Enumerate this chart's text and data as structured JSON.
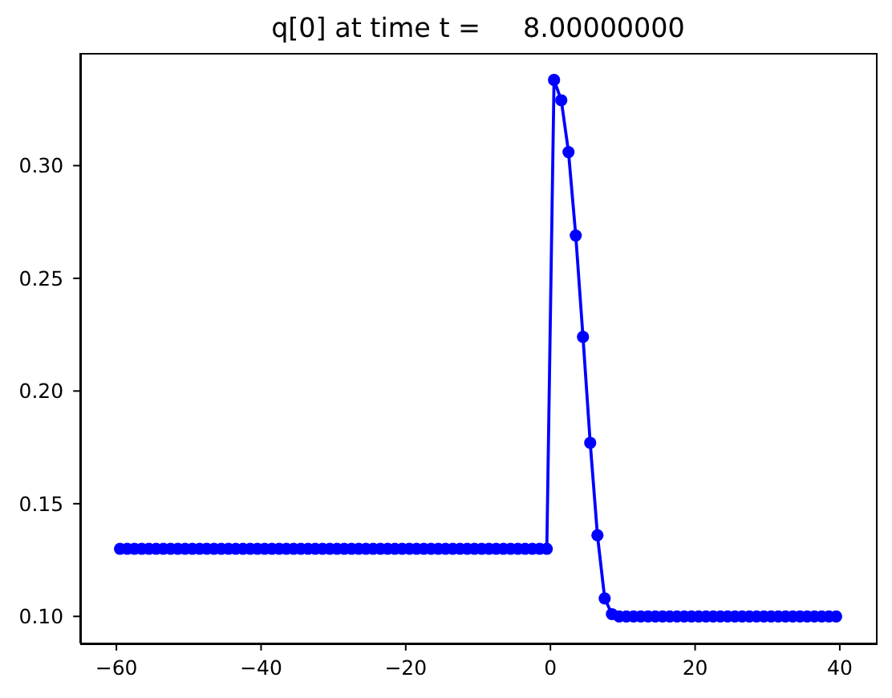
{
  "chart_data": {
    "type": "line",
    "title": "q[0] at time t =     8.00000000",
    "x": [
      -59.5,
      -58.5,
      -57.5,
      -56.5,
      -55.5,
      -54.5,
      -53.5,
      -52.5,
      -51.5,
      -50.5,
      -49.5,
      -48.5,
      -47.5,
      -46.5,
      -45.5,
      -44.5,
      -43.5,
      -42.5,
      -41.5,
      -40.5,
      -39.5,
      -38.5,
      -37.5,
      -36.5,
      -35.5,
      -34.5,
      -33.5,
      -32.5,
      -31.5,
      -30.5,
      -29.5,
      -28.5,
      -27.5,
      -26.5,
      -25.5,
      -24.5,
      -23.5,
      -22.5,
      -21.5,
      -20.5,
      -19.5,
      -18.5,
      -17.5,
      -16.5,
      -15.5,
      -14.5,
      -13.5,
      -12.5,
      -11.5,
      -10.5,
      -9.5,
      -8.5,
      -7.5,
      -6.5,
      -5.5,
      -4.5,
      -3.5,
      -2.5,
      -1.5,
      -0.5,
      0.5,
      1.5,
      2.5,
      3.5,
      4.5,
      5.5,
      6.5,
      7.5,
      8.5,
      9.5,
      10.5,
      11.5,
      12.5,
      13.5,
      14.5,
      15.5,
      16.5,
      17.5,
      18.5,
      19.5,
      20.5,
      21.5,
      22.5,
      23.5,
      24.5,
      25.5,
      26.5,
      27.5,
      28.5,
      29.5,
      30.5,
      31.5,
      32.5,
      33.5,
      34.5,
      35.5,
      36.5,
      37.5,
      38.5,
      39.5
    ],
    "series": [
      {
        "color": "#0000ff",
        "values": [
          0.13,
          0.13,
          0.13,
          0.13,
          0.13,
          0.13,
          0.13,
          0.13,
          0.13,
          0.13,
          0.13,
          0.13,
          0.13,
          0.13,
          0.13,
          0.13,
          0.13,
          0.13,
          0.13,
          0.13,
          0.13,
          0.13,
          0.13,
          0.13,
          0.13,
          0.13,
          0.13,
          0.13,
          0.13,
          0.13,
          0.13,
          0.13,
          0.13,
          0.13,
          0.13,
          0.13,
          0.13,
          0.13,
          0.13,
          0.13,
          0.13,
          0.13,
          0.13,
          0.13,
          0.13,
          0.13,
          0.13,
          0.13,
          0.13,
          0.13,
          0.13,
          0.13,
          0.13,
          0.13,
          0.13,
          0.13,
          0.13,
          0.13,
          0.13,
          0.13,
          0.338,
          0.329,
          0.306,
          0.269,
          0.224,
          0.177,
          0.136,
          0.108,
          0.101,
          0.1,
          0.1,
          0.1,
          0.1,
          0.1,
          0.1,
          0.1,
          0.1,
          0.1,
          0.1,
          0.1,
          0.1,
          0.1,
          0.1,
          0.1,
          0.1,
          0.1,
          0.1,
          0.1,
          0.1,
          0.1,
          0.1,
          0.1,
          0.1,
          0.1,
          0.1,
          0.1,
          0.1,
          0.1,
          0.1,
          0.1
        ]
      }
    ],
    "xlim": [
      -65,
      45
    ],
    "xticks": [
      {
        "value": -60,
        "label": "−60"
      },
      {
        "value": -40,
        "label": "−40"
      },
      {
        "value": -20,
        "label": "−20"
      },
      0,
      20,
      40
    ],
    "ylim": [
      0.088,
      0.35
    ],
    "yticks": [
      {
        "value": 0.1,
        "label": "0.10"
      },
      {
        "value": 0.15,
        "label": "0.15"
      },
      {
        "value": 0.2,
        "label": "0.20"
      },
      {
        "value": 0.25,
        "label": "0.25"
      },
      {
        "value": 0.3,
        "label": "0.30"
      }
    ],
    "marker": "circle",
    "line_style": "solid"
  }
}
